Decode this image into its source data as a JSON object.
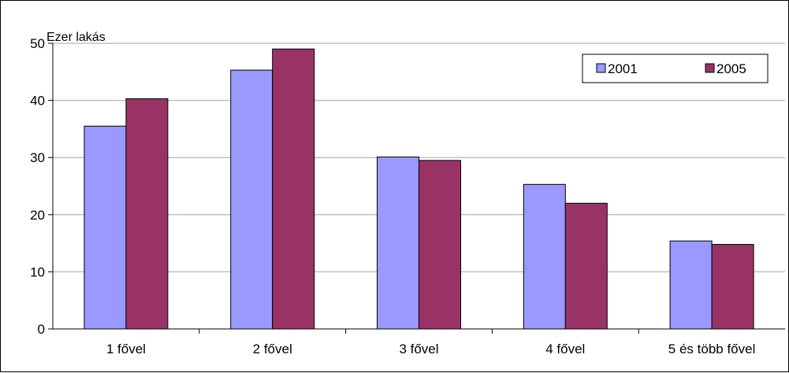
{
  "chart_data": {
    "type": "bar",
    "unit_label": "Ezer lakás",
    "categories": [
      "1 fővel",
      "2 fővel",
      "3 fővel",
      "4 fővel",
      "5 és több fővel"
    ],
    "series": [
      {
        "name": "2001",
        "values": [
          35.5,
          45.3,
          30.1,
          25.3,
          15.4
        ],
        "color": "#9999ff"
      },
      {
        "name": "2005",
        "values": [
          40.3,
          49.0,
          29.5,
          22.0,
          14.8
        ],
        "color": "#993366"
      }
    ],
    "ylim": [
      0,
      50
    ],
    "yticks": [
      0,
      10,
      20,
      30,
      40,
      50
    ],
    "grid": true,
    "legend_position": "top-right"
  }
}
